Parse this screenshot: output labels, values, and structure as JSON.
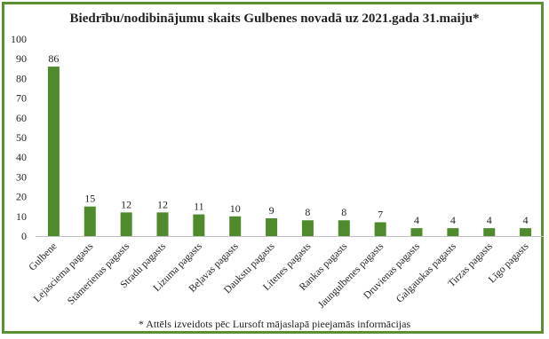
{
  "chart_data": {
    "type": "bar",
    "title": "Biedrību/nodibinājumu skaits Gulbenes novadā uz 2021.gada 31.maiju*",
    "categories": [
      "Gulbene",
      "Lejasciema pagasts",
      "Stāmerienas pagasts",
      "Stradu pagasts",
      "Lizuma pagasts",
      "Beļavas pagasts",
      "Daukstu pagasts",
      "Litenes pagasts",
      "Rankas pagasts",
      "Jaungulbenes pagasts",
      "Druvienas pagasts",
      "Galgauskas pagasts",
      "Tirzas pagasts",
      "Līgo pagasts"
    ],
    "values": [
      86,
      15,
      12,
      12,
      11,
      10,
      9,
      8,
      8,
      7,
      4,
      4,
      4,
      4
    ],
    "ylim": [
      0,
      100
    ],
    "yticks": [
      0,
      10,
      20,
      30,
      40,
      50,
      60,
      70,
      80,
      90,
      100
    ],
    "xlabel": "",
    "ylabel": "",
    "grid": false,
    "bar_color": "#4f8a2c",
    "footnote": "* Attēls izveidots pēc Lursoft mājaslapā pieejamās informācijas"
  },
  "frame_color": "#5b8f33"
}
